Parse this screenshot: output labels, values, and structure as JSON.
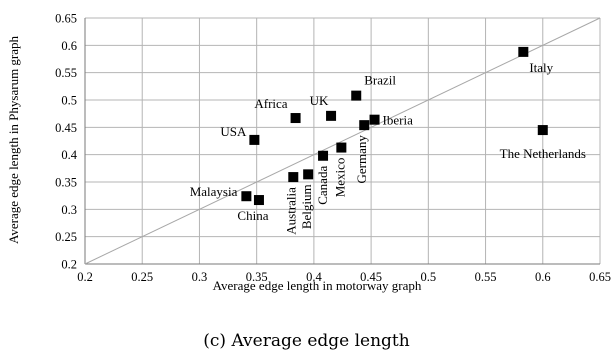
{
  "caption": "(c) Average edge length",
  "chart_data": {
    "type": "scatter",
    "title": "",
    "xlabel": "Average edge length in motorway graph",
    "ylabel": "Average edge length in Physarum graph",
    "xlim": [
      0.2,
      0.65
    ],
    "ylim": [
      0.2,
      0.65
    ],
    "x_ticks": [
      0.2,
      0.25,
      0.3,
      0.35,
      0.4,
      0.45,
      0.5,
      0.55,
      0.6,
      0.65
    ],
    "y_ticks": [
      0.2,
      0.25,
      0.3,
      0.35,
      0.4,
      0.45,
      0.5,
      0.55,
      0.6,
      0.65
    ],
    "x_tick_labels": [
      "0.2",
      "0.25",
      "0.3",
      "0.35",
      "0.4",
      "0.45",
      "0.5",
      "0.55",
      "0.6",
      "0.65"
    ],
    "y_tick_labels": [
      "0.2",
      "0.25",
      "0.3",
      "0.35",
      "0.4",
      "0.45",
      "0.5",
      "0.55",
      "0.6",
      "0.65"
    ],
    "grid": true,
    "reference_line": "y = x",
    "marker": "square",
    "points": [
      {
        "label": "Italy",
        "x": 0.583,
        "y": 0.588
      },
      {
        "label": "The Netherlands",
        "x": 0.6,
        "y": 0.445
      },
      {
        "label": "Brazil",
        "x": 0.437,
        "y": 0.508
      },
      {
        "label": "UK",
        "x": 0.415,
        "y": 0.471
      },
      {
        "label": "Africa",
        "x": 0.384,
        "y": 0.467
      },
      {
        "label": "Iberia",
        "x": 0.453,
        "y": 0.464
      },
      {
        "label": "Germany",
        "x": 0.444,
        "y": 0.454
      },
      {
        "label": "USA",
        "x": 0.348,
        "y": 0.427
      },
      {
        "label": "Mexico",
        "x": 0.424,
        "y": 0.413
      },
      {
        "label": "Canada",
        "x": 0.408,
        "y": 0.398
      },
      {
        "label": "Belgium",
        "x": 0.395,
        "y": 0.364
      },
      {
        "label": "Australia",
        "x": 0.382,
        "y": 0.359
      },
      {
        "label": "Malaysia",
        "x": 0.341,
        "y": 0.324
      },
      {
        "label": "China",
        "x": 0.352,
        "y": 0.317
      }
    ]
  }
}
